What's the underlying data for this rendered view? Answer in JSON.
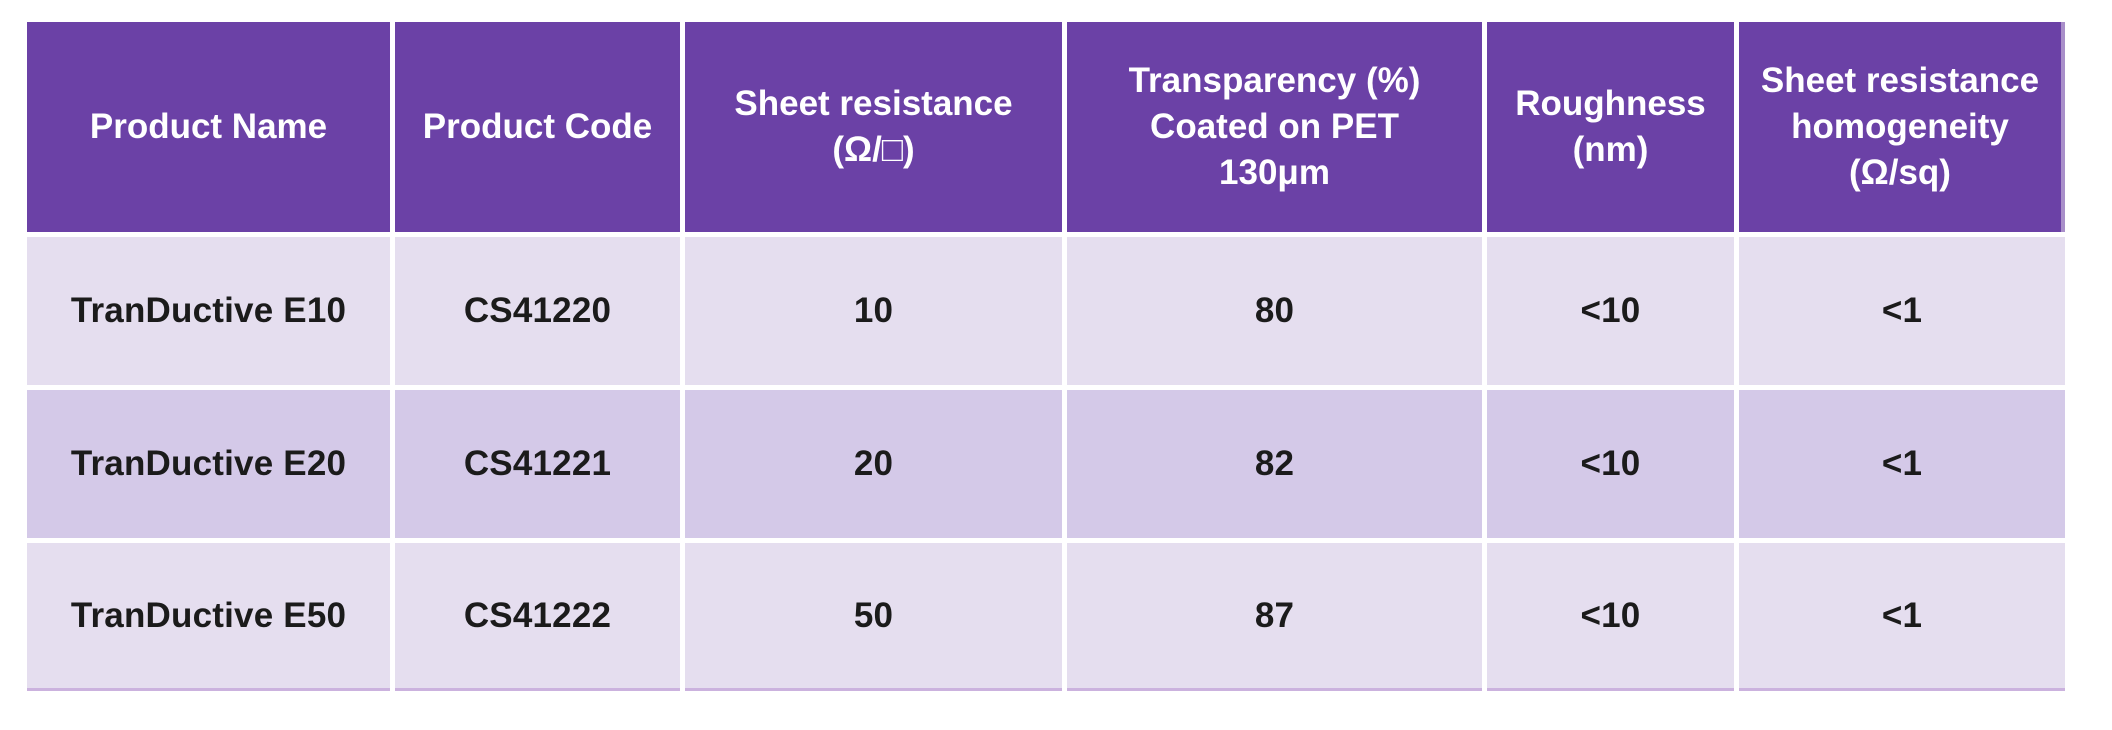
{
  "colors": {
    "header_bg": "#6b41a6",
    "header_text": "#ffffff",
    "row_light_bg": "#e5deef",
    "row_dark_bg": "#d4c9e8",
    "body_text": "#1b1b1b",
    "separator": "#ffffff",
    "bottom_accent": "#cbb2de"
  },
  "chart_data": {
    "type": "table",
    "title": "",
    "columns": [
      "Product Name",
      "Product Code",
      "Sheet resistance (Ω/□)",
      "Transparency (%) Coated on PET 130μm",
      "Roughness (nm)",
      "Sheet resistance homogeneity (Ω/sq)"
    ],
    "rows": [
      [
        "TranDuctive E10",
        "CS41220",
        "10",
        "80",
        "<10",
        "<1"
      ],
      [
        "TranDuctive E20",
        "CS41221",
        "20",
        "82",
        "<10",
        "<1"
      ],
      [
        "TranDuctive E50",
        "CS41222",
        "50",
        "87",
        "<10",
        "<1"
      ]
    ]
  },
  "table": {
    "headers": [
      {
        "label": "Product Name"
      },
      {
        "label": "Product Code"
      },
      {
        "label": "Sheet resistance\n(Ω/□)"
      },
      {
        "label": "Transparency (%)\nCoated on PET\n130μm"
      },
      {
        "label": "Roughness\n(nm)"
      },
      {
        "label": "Sheet resistance\nhomogeneity\n(Ω/sq)"
      }
    ],
    "rows": [
      {
        "cells": [
          "TranDuctive E10",
          "CS41220",
          "10",
          "80",
          "<10",
          "<1"
        ]
      },
      {
        "cells": [
          "TranDuctive E20",
          "CS41221",
          "20",
          "82",
          "<10",
          "<1"
        ]
      },
      {
        "cells": [
          "TranDuctive E50",
          "CS41222",
          "50",
          "87",
          "<10",
          "<1"
        ]
      }
    ]
  }
}
